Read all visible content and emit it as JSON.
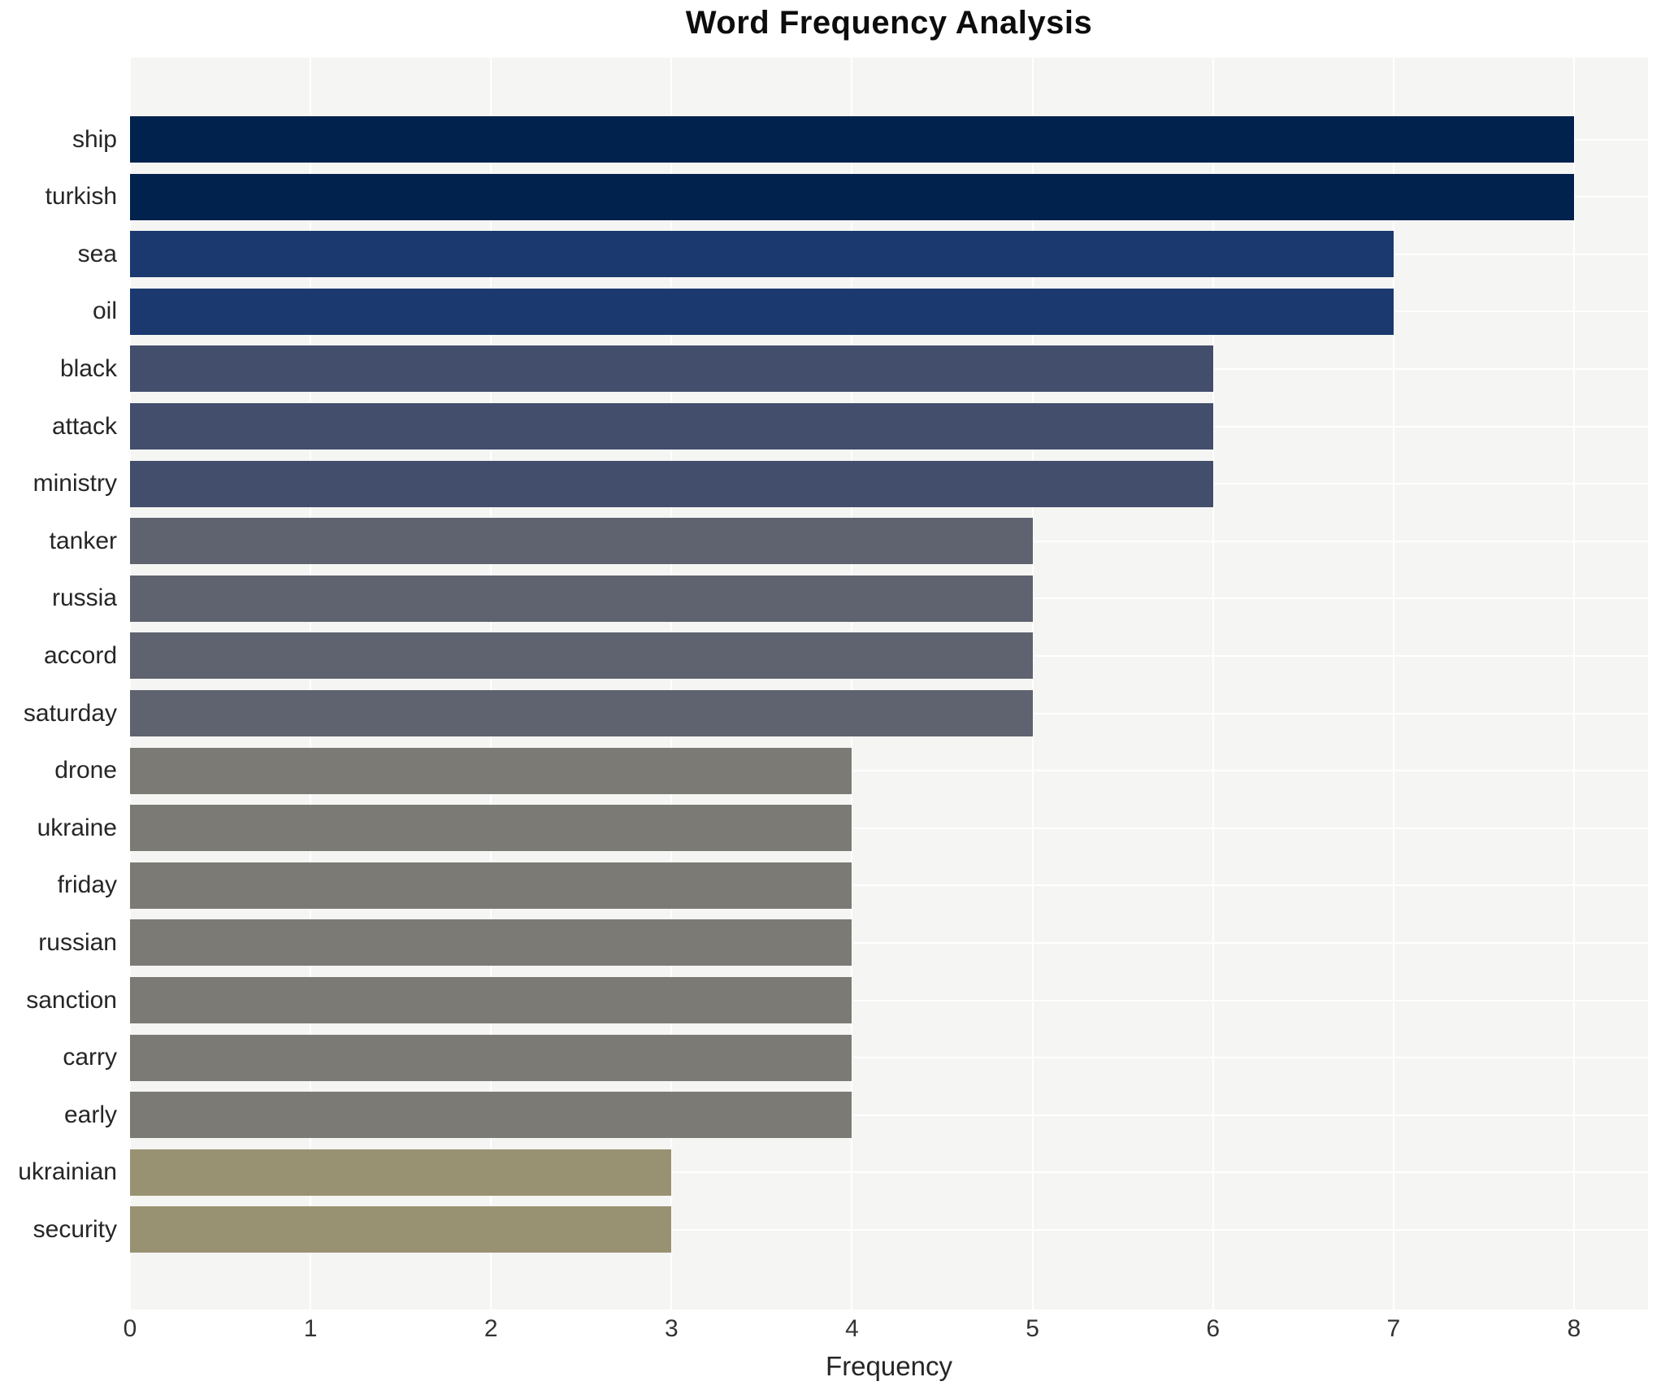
{
  "chart_data": {
    "type": "bar",
    "orientation": "horizontal",
    "title": "Word Frequency Analysis",
    "xlabel": "Frequency",
    "ylabel": "",
    "xlim": [
      0,
      8.41
    ],
    "xticks": [
      0,
      1,
      2,
      3,
      4,
      5,
      6,
      7,
      8
    ],
    "grid": true,
    "legend_position": "none",
    "categories": [
      "ship",
      "turkish",
      "sea",
      "oil",
      "black",
      "attack",
      "ministry",
      "tanker",
      "russia",
      "accord",
      "saturday",
      "drone",
      "ukraine",
      "friday",
      "russian",
      "sanction",
      "carry",
      "early",
      "ukrainian",
      "security"
    ],
    "values": [
      8,
      8,
      7,
      7,
      6,
      6,
      6,
      5,
      5,
      5,
      5,
      4,
      4,
      4,
      4,
      4,
      4,
      4,
      3,
      3
    ],
    "bar_colors": [
      "#02224e",
      "#02224e",
      "#1b396e",
      "#1b396e",
      "#434e6c",
      "#434e6c",
      "#434e6c",
      "#5f636f",
      "#5f636f",
      "#5f636f",
      "#5f636f",
      "#7b7a74",
      "#7b7a74",
      "#7b7a74",
      "#7b7a74",
      "#7b7a74",
      "#7b7a74",
      "#7b7a74",
      "#999272",
      "#999272"
    ],
    "colors": {
      "figure_background": "#ffffff",
      "plot_background": "#f5f5f3",
      "gridline": "#ffffff",
      "text": "#262626"
    }
  }
}
